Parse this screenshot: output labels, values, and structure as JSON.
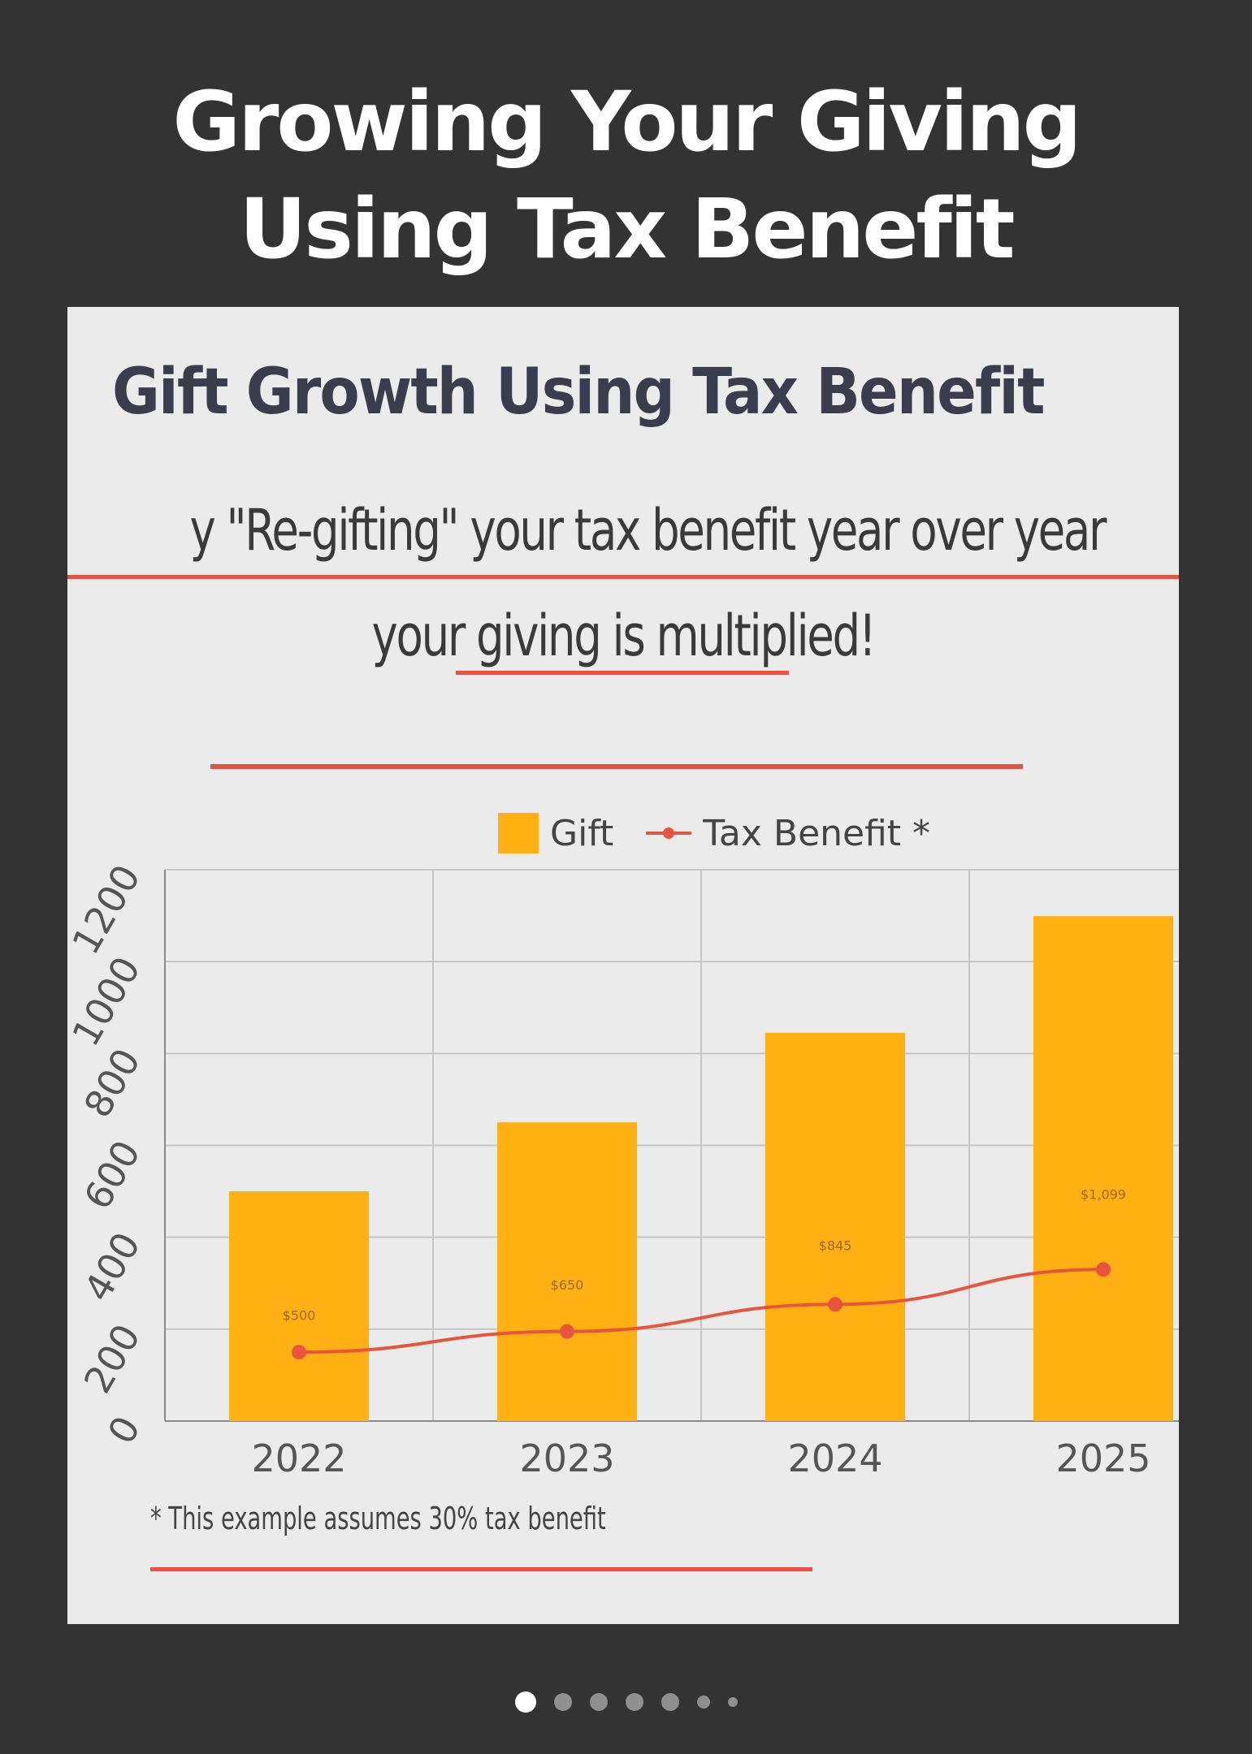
{
  "page": {
    "title_line1": "Growing Your Giving",
    "title_line2": "Using Tax Benefit"
  },
  "slide": {
    "title": "Gift Growth Using Tax Benefit",
    "subtitle_line1": "y \"Re-gifting\" your tax benefit year over year",
    "subtitle_line2": "your giving is multiplied!",
    "footnote": "* This example assumes 30% tax benefit"
  },
  "carousel": {
    "dot_count": 7,
    "active_index": 0
  },
  "chart_data": {
    "type": "bar",
    "title": "",
    "xlabel": "",
    "ylabel": "",
    "categories": [
      "2022",
      "2023",
      "2024",
      "2025"
    ],
    "ylim": [
      0,
      1200
    ],
    "yticks": [
      "0",
      "200",
      "400",
      "600",
      "800",
      "1000",
      "1200"
    ],
    "ytick_values": [
      0,
      200,
      400,
      600,
      800,
      1000,
      1200
    ],
    "grid": true,
    "legend_position": "top-center",
    "series": [
      {
        "name": "Gift",
        "type": "bar",
        "color": "#ffb012",
        "values": [
          500,
          650,
          845,
          1099
        ],
        "data_labels": [
          "$500",
          "$650",
          "$845",
          "$1,099"
        ]
      },
      {
        "name": "Tax Benefit *",
        "type": "line",
        "color": "#e8553e",
        "values": [
          150,
          195,
          254,
          330
        ]
      }
    ]
  }
}
